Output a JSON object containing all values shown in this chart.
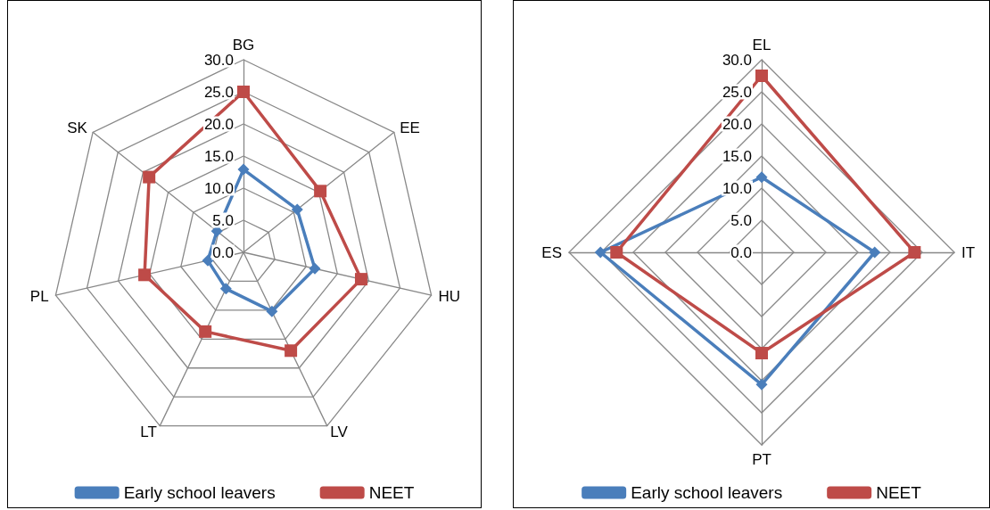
{
  "chart_data": [
    {
      "type": "radar",
      "categories": [
        "BG",
        "EE",
        "HU",
        "LV",
        "LT",
        "PL",
        "SK"
      ],
      "series": [
        {
          "name": "Early school leavers",
          "color": "#4a7ebb",
          "marker": "diamond",
          "values": [
            12.9,
            10.7,
            11.4,
            10.2,
            6.3,
            5.7,
            5.3
          ]
        },
        {
          "name": "NEET",
          "color": "#be4b48",
          "marker": "square",
          "values": [
            25.0,
            15.3,
            18.8,
            17.0,
            13.7,
            15.8,
            18.8
          ]
        }
      ],
      "ylim": [
        0,
        30
      ],
      "yticks": [
        {
          "value": 0,
          "label": "0.0"
        },
        {
          "value": 5,
          "label": "5.0"
        },
        {
          "value": 10,
          "label": "10.0"
        },
        {
          "value": 15,
          "label": "15.0"
        },
        {
          "value": 20,
          "label": "20.0"
        },
        {
          "value": 25,
          "label": "25.0"
        },
        {
          "value": 30,
          "label": "30.0"
        }
      ],
      "grid": true,
      "legend": "bottom"
    },
    {
      "type": "radar",
      "categories": [
        "EL",
        "IT",
        "PT",
        "ES"
      ],
      "series": [
        {
          "name": "Early school leavers",
          "color": "#4a7ebb",
          "marker": "diamond",
          "values": [
            11.7,
            17.6,
            20.6,
            25.1
          ]
        },
        {
          "name": "NEET",
          "color": "#be4b48",
          "marker": "square",
          "values": [
            27.5,
            23.8,
            15.7,
            22.6
          ]
        }
      ],
      "ylim": [
        0,
        30
      ],
      "yticks": [
        {
          "value": 0,
          "label": "0.0"
        },
        {
          "value": 5,
          "label": "5.0"
        },
        {
          "value": 10,
          "label": "10.0"
        },
        {
          "value": 15,
          "label": "15.0"
        },
        {
          "value": 20,
          "label": "20.0"
        },
        {
          "value": 25,
          "label": "25.0"
        },
        {
          "value": 30,
          "label": "30.0"
        }
      ],
      "grid": true,
      "legend": "bottom"
    }
  ]
}
